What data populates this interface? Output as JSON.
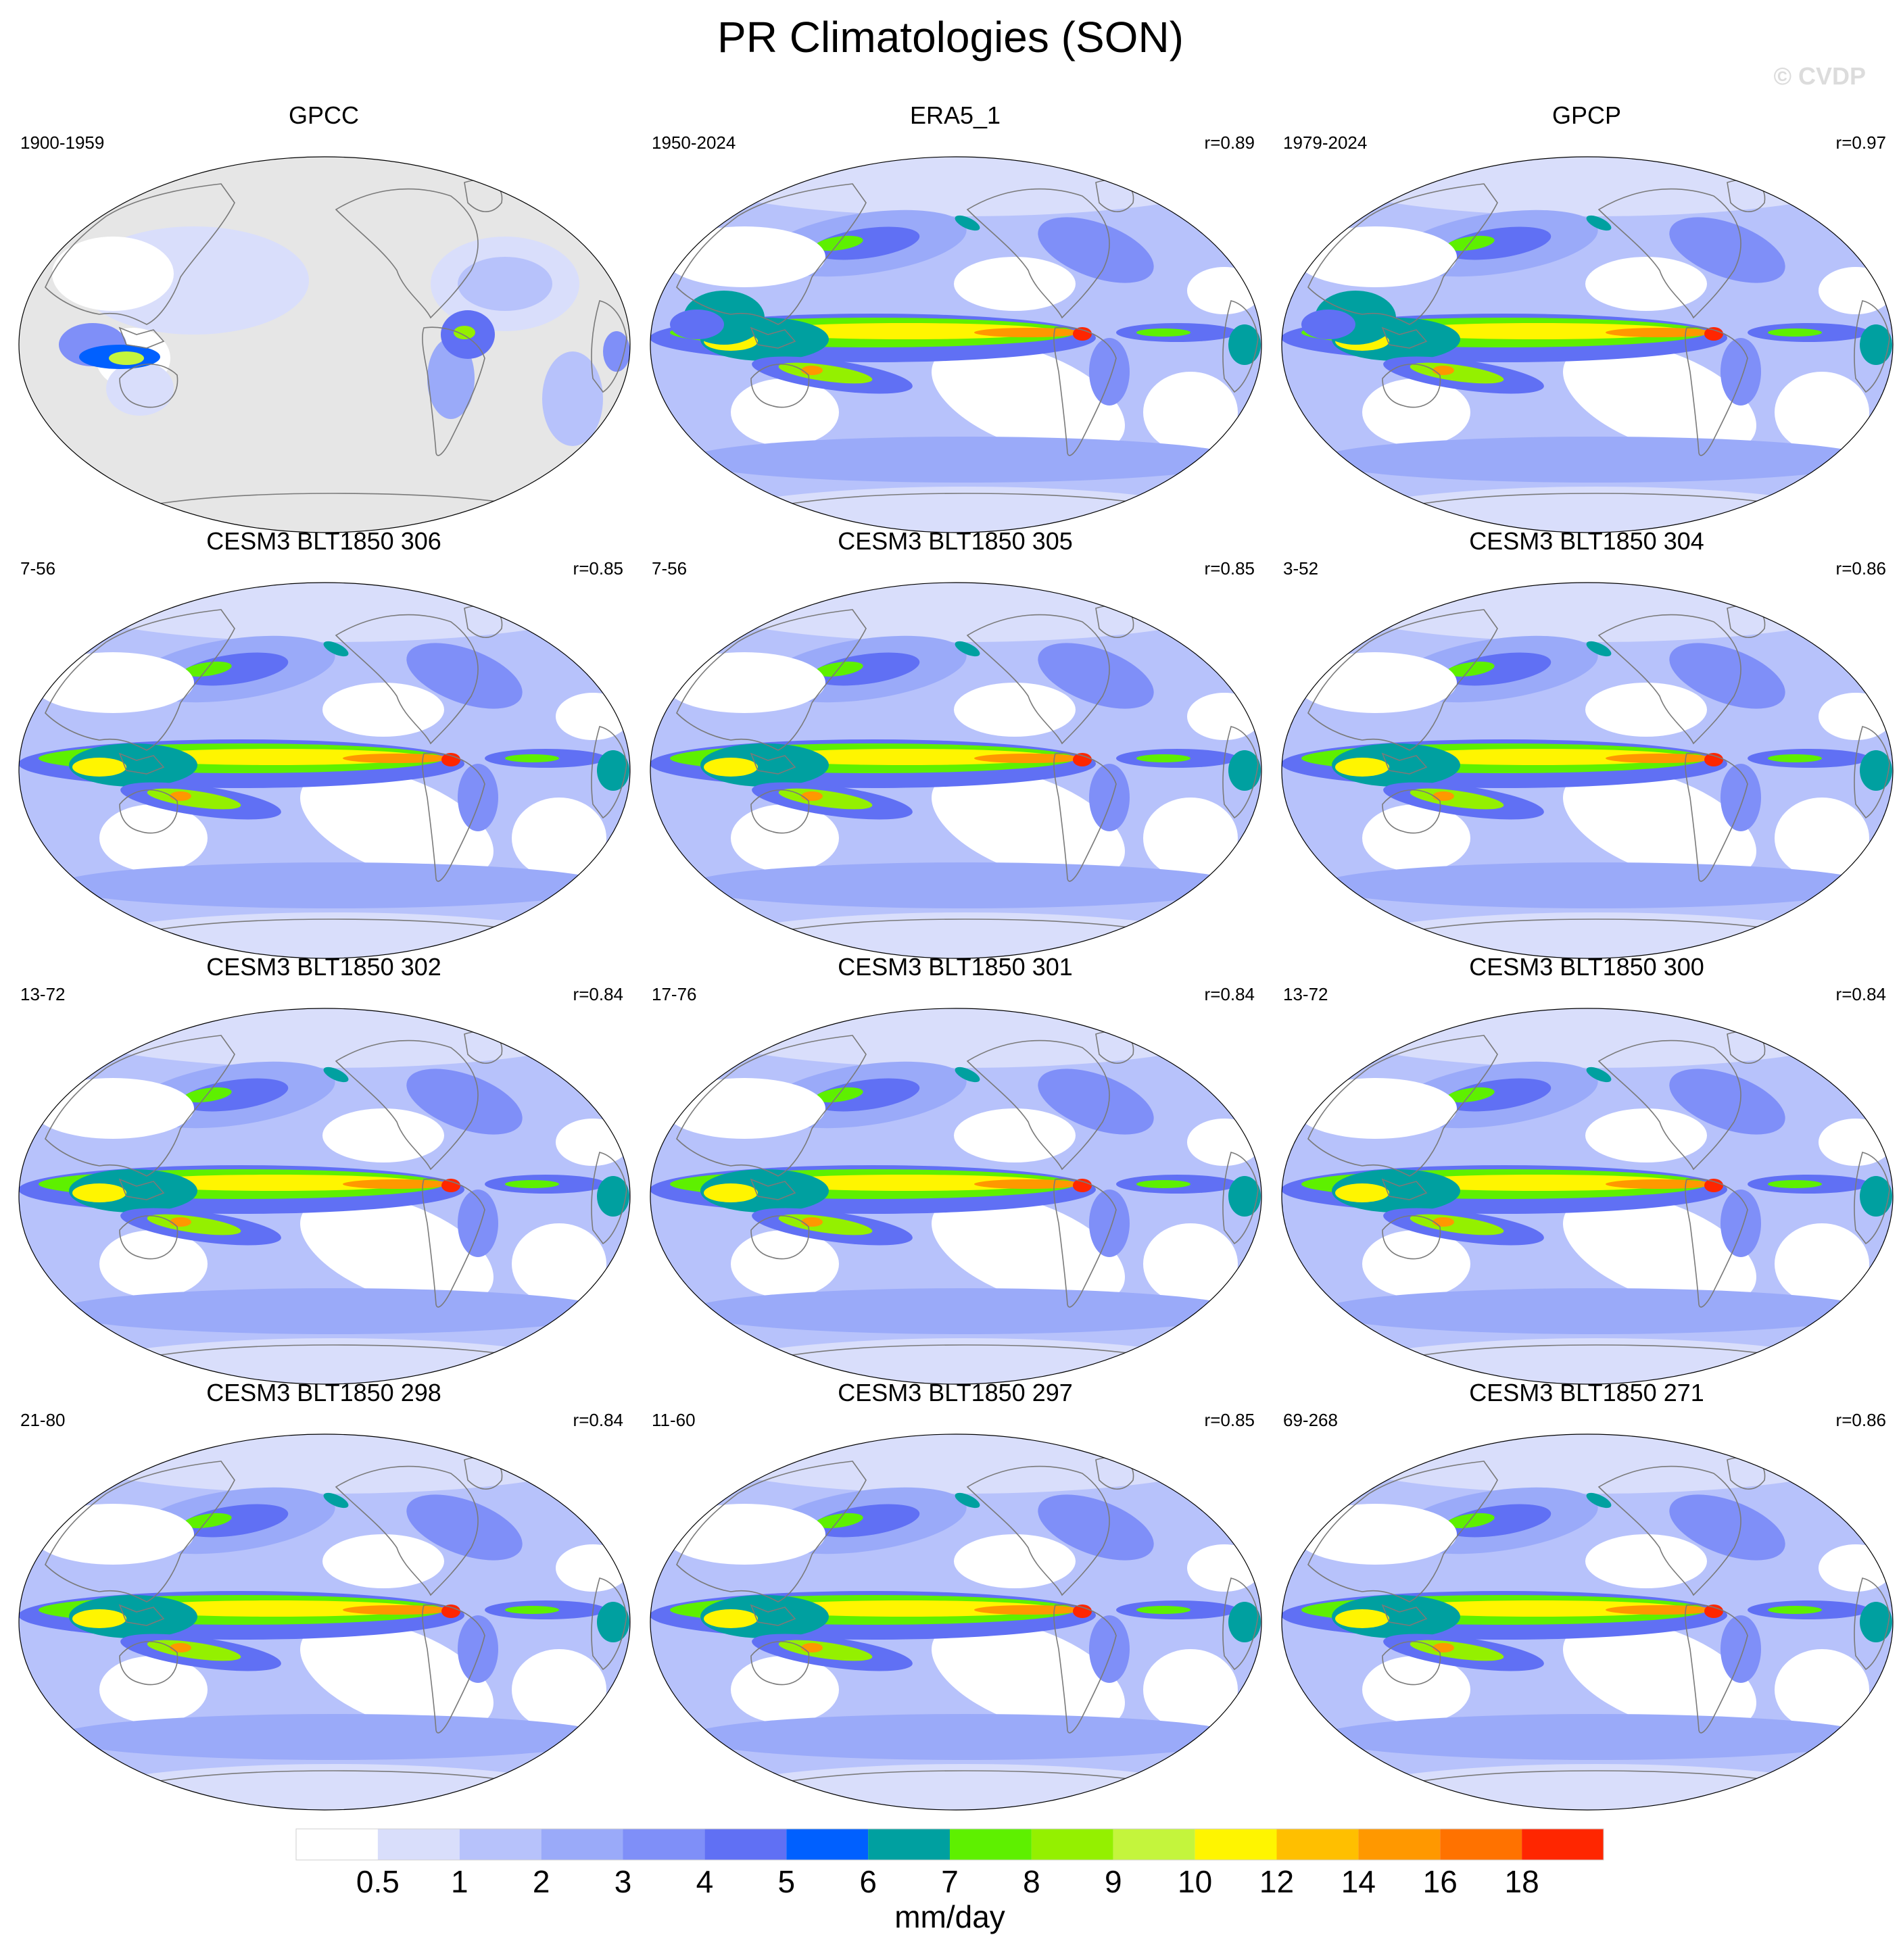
{
  "title": "PR Climatologies (SON)",
  "watermark": "© CVDP",
  "panels": [
    {
      "title": "GPCC",
      "period": "1900-1959",
      "corr": "",
      "kind": "gpcc"
    },
    {
      "title": "ERA5_1",
      "period": "1950-2024",
      "corr": "r=0.89",
      "kind": "obs"
    },
    {
      "title": "GPCP",
      "period": "1979-2024",
      "corr": "r=0.97",
      "kind": "obs"
    },
    {
      "title": "CESM3 BLT1850 306",
      "period": "7-56",
      "corr": "r=0.85",
      "kind": "model"
    },
    {
      "title": "CESM3 BLT1850 305",
      "period": "7-56",
      "corr": "r=0.85",
      "kind": "model"
    },
    {
      "title": "CESM3 BLT1850 304",
      "period": "3-52",
      "corr": "r=0.86",
      "kind": "model"
    },
    {
      "title": "CESM3 BLT1850 302",
      "period": "13-72",
      "corr": "r=0.84",
      "kind": "model"
    },
    {
      "title": "CESM3 BLT1850 301",
      "period": "17-76",
      "corr": "r=0.84",
      "kind": "model"
    },
    {
      "title": "CESM3 BLT1850 300",
      "period": "13-72",
      "corr": "r=0.84",
      "kind": "model"
    },
    {
      "title": "CESM3 BLT1850 298",
      "period": "21-80",
      "corr": "r=0.84",
      "kind": "model"
    },
    {
      "title": "CESM3 BLT1850 297",
      "period": "11-60",
      "corr": "r=0.85",
      "kind": "model"
    },
    {
      "title": "CESM3 BLT1850 271",
      "period": "69-268",
      "corr": "r=0.86",
      "kind": "model"
    }
  ],
  "colorbar": {
    "units": "mm/day",
    "levels": [
      "0.5",
      "1",
      "2",
      "3",
      "4",
      "5",
      "6",
      "7",
      "8",
      "9",
      "10",
      "12",
      "14",
      "16",
      "18"
    ],
    "colors": [
      "#ffffff",
      "#d9defb",
      "#b7c2fb",
      "#9aaaf9",
      "#7f8ff8",
      "#6070f4",
      "#0060ff",
      "#00a0a0",
      "#5ef000",
      "#94f000",
      "#c4f53c",
      "#fff500",
      "#ffbf00",
      "#ff9800",
      "#ff7200",
      "#ff2600"
    ]
  },
  "colors": {
    "missing": "#e6e6e6",
    "coast": "#7a7a7a"
  }
}
